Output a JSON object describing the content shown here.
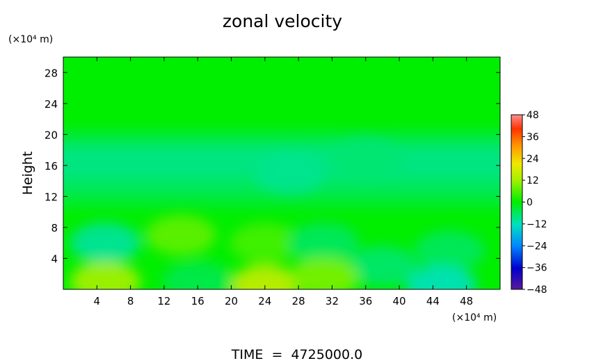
{
  "chart_data": {
    "type": "heatmap",
    "title": "zonal velocity",
    "ylabel": "Height",
    "y_unit": "(×10⁴ m)",
    "x_unit": "(×10⁴ m)",
    "footer": "TIME  =  4725000.0",
    "xlim": [
      0,
      52
    ],
    "ylim": [
      0,
      30
    ],
    "xticks": [
      4,
      8,
      12,
      16,
      20,
      24,
      28,
      32,
      36,
      40,
      44,
      48
    ],
    "xtick_labels": [
      "4",
      "8",
      "12",
      "16",
      "20",
      "24",
      "28",
      "32",
      "36",
      "40",
      "44",
      "48"
    ],
    "yticks": [
      4,
      8,
      12,
      16,
      20,
      24,
      28
    ],
    "ytick_labels": [
      "4",
      "8",
      "12",
      "16",
      "20",
      "24",
      "28"
    ],
    "colorbar": {
      "min": -48,
      "max": 48,
      "ticks": [
        48,
        36,
        24,
        12,
        0,
        -12,
        -24,
        -36,
        -48
      ],
      "tick_labels": [
        "48",
        "36",
        "24",
        "12",
        "0",
        "−12",
        "−24",
        "−36",
        "−48"
      ]
    },
    "field": {
      "background_value": 0,
      "bands": [
        {
          "y_range": [
            18.5,
            20.5
          ],
          "value": -4
        },
        {
          "y_range": [
            14.5,
            18.5
          ],
          "value": -8
        },
        {
          "y_range": [
            12.5,
            14.5
          ],
          "value": -6
        },
        {
          "y_range": [
            10.5,
            12.5
          ],
          "value": -3
        }
      ],
      "features": [
        {
          "x": 5,
          "y": 6,
          "value": -10
        },
        {
          "x": 14,
          "y": 7,
          "value": 7
        },
        {
          "x": 24,
          "y": 6,
          "value": 5
        },
        {
          "x": 31,
          "y": 6,
          "value": -6
        },
        {
          "x": 38,
          "y": 3,
          "value": -7
        },
        {
          "x": 46,
          "y": 5,
          "value": -6
        },
        {
          "x": 5,
          "y": 1,
          "value": 12
        },
        {
          "x": 24,
          "y": 0.5,
          "value": 16
        },
        {
          "x": 31,
          "y": 1.5,
          "value": 9
        },
        {
          "x": 45,
          "y": 0.5,
          "value": -12
        },
        {
          "x": 16,
          "y": 1,
          "value": -5
        },
        {
          "x": 27,
          "y": 15,
          "value": -9
        },
        {
          "x": 36,
          "y": 17,
          "value": -7
        }
      ]
    }
  }
}
